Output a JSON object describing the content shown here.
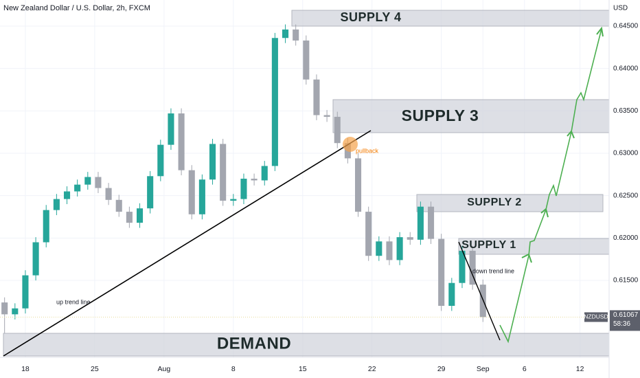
{
  "chart_data": {
    "type": "candlestick",
    "title": "New Zealand Dollar / U.S. Dollar, 2h, FXCM",
    "currency": "USD",
    "symbol": "NZDUSD",
    "countdown": "58:36",
    "x": [
      -1.5,
      -0.75,
      0,
      0.75,
      1.5,
      2.25,
      3,
      3.75,
      4.5,
      5.25,
      6,
      6.75,
      7.5,
      8.25,
      9,
      9.75,
      10.5,
      11.25,
      12,
      12.75,
      13.5,
      14.25,
      15,
      15.75,
      16.5,
      17.25,
      18,
      18.75,
      19.5,
      20.25,
      21,
      21.75,
      22.5,
      23.25,
      24,
      24.75,
      25.5,
      26.25,
      27,
      27.75,
      28.5,
      29.25,
      30,
      30.75,
      31.5,
      32.25,
      33
    ],
    "open": [
      0.6124,
      0.611,
      0.6117,
      0.6156,
      0.6195,
      0.6233,
      0.6246,
      0.6255,
      0.6263,
      0.6272,
      0.6259,
      0.6245,
      0.6231,
      0.6218,
      0.6235,
      0.6273,
      0.631,
      0.6347,
      0.628,
      0.6228,
      0.6269,
      0.6311,
      0.6244,
      0.6246,
      0.627,
      0.6268,
      0.6285,
      0.6436,
      0.6446,
      0.6433,
      0.6387,
      0.6345,
      0.6343,
      0.6312,
      0.6294,
      0.6231,
      0.6179,
      0.6196,
      0.6174,
      0.6201,
      0.6198,
      0.6237,
      0.6199,
      0.612,
      0.6147,
      0.6185,
      0.6145
    ],
    "high": [
      0.613,
      0.6123,
      0.6162,
      0.6201,
      0.6239,
      0.6252,
      0.6261,
      0.6269,
      0.6278,
      0.6278,
      0.6265,
      0.6251,
      0.6237,
      0.6241,
      0.6279,
      0.6316,
      0.6353,
      0.6353,
      0.6286,
      0.6275,
      0.6317,
      0.6317,
      0.6252,
      0.6276,
      0.6276,
      0.6291,
      0.6442,
      0.6452,
      0.6452,
      0.6439,
      0.6393,
      0.6351,
      0.6349,
      0.6318,
      0.63,
      0.6237,
      0.6202,
      0.6202,
      0.6207,
      0.6207,
      0.6243,
      0.6243,
      0.6205,
      0.6153,
      0.6191,
      0.6191,
      0.6151
    ],
    "low": [
      0.6088,
      0.6104,
      0.6111,
      0.615,
      0.6189,
      0.6227,
      0.624,
      0.6249,
      0.6257,
      0.6253,
      0.6239,
      0.6225,
      0.6212,
      0.6212,
      0.6229,
      0.6267,
      0.6304,
      0.6274,
      0.6222,
      0.6222,
      0.6263,
      0.6238,
      0.6238,
      0.624,
      0.6262,
      0.6262,
      0.6279,
      0.643,
      0.6427,
      0.6381,
      0.6339,
      0.6337,
      0.6306,
      0.6288,
      0.6225,
      0.6173,
      0.6173,
      0.6168,
      0.6168,
      0.6192,
      0.6192,
      0.6193,
      0.6114,
      0.6114,
      0.6141,
      0.6139,
      0.6101
    ],
    "close": [
      0.611,
      0.6117,
      0.6156,
      0.6195,
      0.6233,
      0.6246,
      0.6255,
      0.6263,
      0.6272,
      0.6259,
      0.6245,
      0.6231,
      0.6218,
      0.6235,
      0.6273,
      0.631,
      0.6347,
      0.628,
      0.6228,
      0.6269,
      0.6311,
      0.6244,
      0.6246,
      0.627,
      0.6268,
      0.6285,
      0.6436,
      0.6446,
      0.6433,
      0.6387,
      0.6345,
      0.6343,
      0.6312,
      0.6294,
      0.6231,
      0.6179,
      0.6196,
      0.6174,
      0.6201,
      0.6198,
      0.6237,
      0.6199,
      0.612,
      0.6147,
      0.6185,
      0.6145,
      0.61067
    ],
    "up_color": "#26a69a",
    "down_color": "#a3a6af",
    "xlim": [
      -1.83,
      42.1
    ],
    "ylim": [
      0.60592,
      0.64808
    ],
    "xticks": [
      {
        "value": 0,
        "label": "18"
      },
      {
        "value": 5,
        "label": "25"
      },
      {
        "value": 10,
        "label": "Aug"
      },
      {
        "value": 15,
        "label": "8"
      },
      {
        "value": 20,
        "label": "15"
      },
      {
        "value": 25,
        "label": "22"
      },
      {
        "value": 30,
        "label": "29"
      },
      {
        "value": 33,
        "label": "Sep"
      },
      {
        "value": 36,
        "label": "6"
      },
      {
        "value": 40,
        "label": "12"
      }
    ],
    "yticks": [
      {
        "value": 0.615,
        "label": "0.61500"
      },
      {
        "value": 0.62,
        "label": "0.62000"
      },
      {
        "value": 0.625,
        "label": "0.62500"
      },
      {
        "value": 0.63,
        "label": "0.63000"
      },
      {
        "value": 0.635,
        "label": "0.63500"
      },
      {
        "value": 0.64,
        "label": "0.64000"
      },
      {
        "value": 0.645,
        "label": "0.64500"
      }
    ],
    "grid": true,
    "annotations": {
      "zones": [
        "SUPPLY 4",
        "SUPPLY 3",
        "SUPPLY 2",
        "SUPPLY 1",
        "DEMAND"
      ],
      "up_trend": "up trend line",
      "down_trend": "down trend line",
      "pullback": "pullback"
    }
  }
}
